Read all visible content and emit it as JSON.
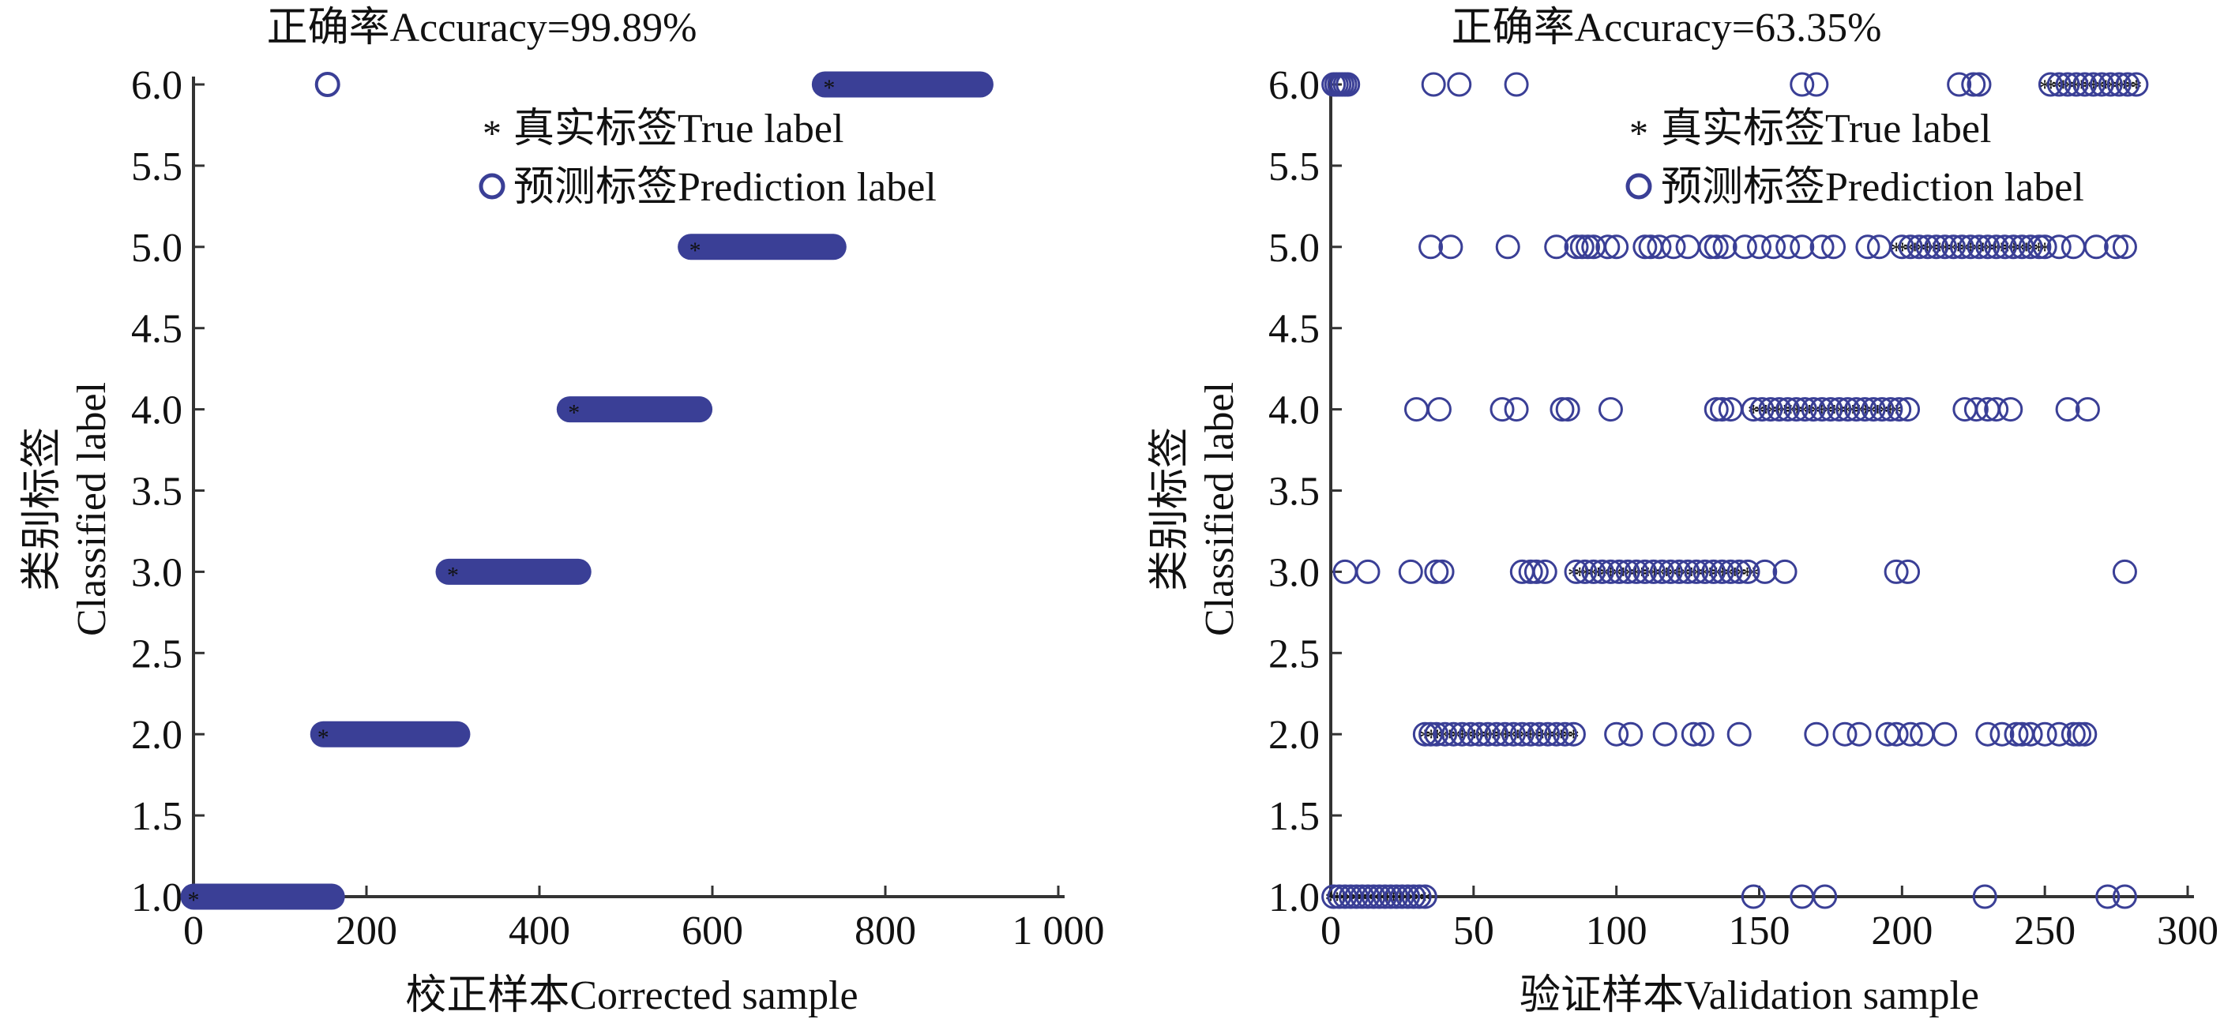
{
  "chart_data": [
    {
      "type": "scatter",
      "title": "正确率Accuracy=99.89%",
      "xlabel": "校正样本Corrected sample",
      "ylabel_line1": "类别标签",
      "ylabel_line2": "Classified label",
      "xlim": [
        0,
        1000
      ],
      "ylim": [
        1.0,
        6.0
      ],
      "xticks": [
        0,
        200,
        400,
        600,
        800,
        1000
      ],
      "xtick_labels": [
        "0",
        "200",
        "400",
        "600",
        "800",
        "1 000"
      ],
      "yticks": [
        1.0,
        1.5,
        2.0,
        2.5,
        3.0,
        3.5,
        4.0,
        4.5,
        5.0,
        5.5,
        6.0
      ],
      "ytick_labels": [
        "1.0",
        "1.5",
        "2.0",
        "2.5",
        "3.0",
        "3.5",
        "4.0",
        "4.5",
        "5.0",
        "5.5",
        "6.0"
      ],
      "legend": {
        "placement": "top-right",
        "entries": [
          "真实标签True label",
          "预测标签Prediction label"
        ]
      },
      "series": [
        {
          "name": "预测标签Prediction label",
          "ranges": [
            {
              "y": 1.0,
              "x_start": 0,
              "x_end": 160
            },
            {
              "y": 2.0,
              "x_start": 150,
              "x_end": 305
            },
            {
              "y": 3.0,
              "x_start": 295,
              "x_end": 445
            },
            {
              "y": 4.0,
              "x_start": 435,
              "x_end": 585
            },
            {
              "y": 5.0,
              "x_start": 575,
              "x_end": 740
            },
            {
              "y": 6.0,
              "x_start": 730,
              "x_end": 910
            }
          ],
          "outliers": [
            {
              "x": 155,
              "y": 6.0
            }
          ]
        },
        {
          "name": "真实标签True label",
          "ranges": [
            {
              "y": 1.0,
              "x_start": 0,
              "x_end": 150
            },
            {
              "y": 2.0,
              "x_start": 150,
              "x_end": 300
            },
            {
              "y": 3.0,
              "x_start": 300,
              "x_end": 440
            },
            {
              "y": 4.0,
              "x_start": 440,
              "x_end": 580
            },
            {
              "y": 5.0,
              "x_start": 580,
              "x_end": 735
            },
            {
              "y": 6.0,
              "x_start": 735,
              "x_end": 905
            }
          ]
        }
      ]
    },
    {
      "type": "scatter",
      "title": "正确率Accuracy=63.35%",
      "xlabel": "验证样本Validation sample",
      "ylabel_line1": "类别标签",
      "ylabel_line2": "Classified label",
      "xlim": [
        0,
        300
      ],
      "ylim": [
        1.0,
        6.0
      ],
      "xticks": [
        0,
        50,
        100,
        150,
        200,
        250,
        300
      ],
      "xtick_labels": [
        "0",
        "50",
        "100",
        "150",
        "200",
        "250",
        "300"
      ],
      "yticks": [
        1.0,
        1.5,
        2.0,
        2.5,
        3.0,
        3.5,
        4.0,
        4.5,
        5.0,
        5.5,
        6.0
      ],
      "ytick_labels": [
        "1.0",
        "1.5",
        "2.0",
        "2.5",
        "3.0",
        "3.5",
        "4.0",
        "4.5",
        "5.0",
        "5.5",
        "6.0"
      ],
      "legend": {
        "placement": "top-right",
        "entries": [
          "真实标签True label",
          "预测标签Prediction label"
        ]
      },
      "series": [
        {
          "name": "真实标签True label",
          "ranges": [
            {
              "y": 1.0,
              "x_start": 0,
              "x_end": 33
            },
            {
              "y": 2.0,
              "x_start": 33,
              "x_end": 85
            },
            {
              "y": 3.0,
              "x_start": 85,
              "x_end": 148
            },
            {
              "y": 4.0,
              "x_start": 148,
              "x_end": 198
            },
            {
              "y": 5.0,
              "x_start": 198,
              "x_end": 250
            },
            {
              "y": 6.0,
              "x_start": 250,
              "x_end": 282
            }
          ]
        },
        {
          "name": "预测标签Prediction label",
          "points": [
            {
              "y": 6.0,
              "x": [
                1,
                2,
                3,
                4,
                5,
                6,
                36,
                45,
                65,
                165,
                170,
                220,
                225,
                227,
                252,
                255,
                258,
                261,
                264,
                267,
                270,
                273,
                276,
                279,
                282
              ]
            },
            {
              "y": 5.0,
              "x": [
                35,
                42,
                62,
                79,
                86,
                88,
                90,
                92,
                97,
                100,
                110,
                112,
                115,
                120,
                125,
                133,
                135,
                138,
                145,
                150,
                155,
                160,
                165,
                172,
                176,
                188,
                192,
                200,
                203,
                206,
                209,
                212,
                215,
                218,
                221,
                224,
                227,
                230,
                233,
                236,
                239,
                242,
                245,
                248,
                250,
                255,
                260,
                268,
                275,
                278
              ]
            },
            {
              "y": 4.0,
              "x": [
                30,
                38,
                60,
                65,
                81,
                83,
                98,
                135,
                137,
                140,
                148,
                151,
                154,
                157,
                160,
                163,
                166,
                169,
                172,
                175,
                178,
                181,
                184,
                187,
                190,
                193,
                196,
                199,
                202,
                222,
                226,
                230,
                233,
                238,
                258,
                265
              ]
            },
            {
              "y": 3.0,
              "x": [
                5,
                13,
                28,
                37,
                39,
                67,
                70,
                72,
                75,
                86,
                89,
                92,
                95,
                98,
                101,
                104,
                107,
                110,
                113,
                116,
                119,
                122,
                125,
                128,
                131,
                134,
                137,
                140,
                143,
                146,
                152,
                159,
                198,
                202,
                278
              ]
            },
            {
              "y": 2.0,
              "x": [
                33,
                35,
                37,
                40,
                43,
                46,
                49,
                52,
                55,
                58,
                61,
                64,
                67,
                70,
                73,
                76,
                79,
                82,
                85,
                100,
                105,
                117,
                127,
                130,
                143,
                170,
                180,
                185,
                195,
                198,
                203,
                207,
                215,
                230,
                235,
                240,
                242,
                245,
                250,
                255,
                260,
                262,
                264
              ]
            },
            {
              "y": 1.0,
              "x": [
                1,
                3,
                5,
                7,
                9,
                11,
                13,
                15,
                17,
                19,
                21,
                23,
                25,
                27,
                29,
                31,
                33,
                148,
                165,
                173,
                229,
                272,
                278
              ]
            }
          ]
        }
      ]
    }
  ],
  "colors": {
    "prediction": "#3a3f96",
    "true": "#e03030",
    "axis": "#333333"
  }
}
